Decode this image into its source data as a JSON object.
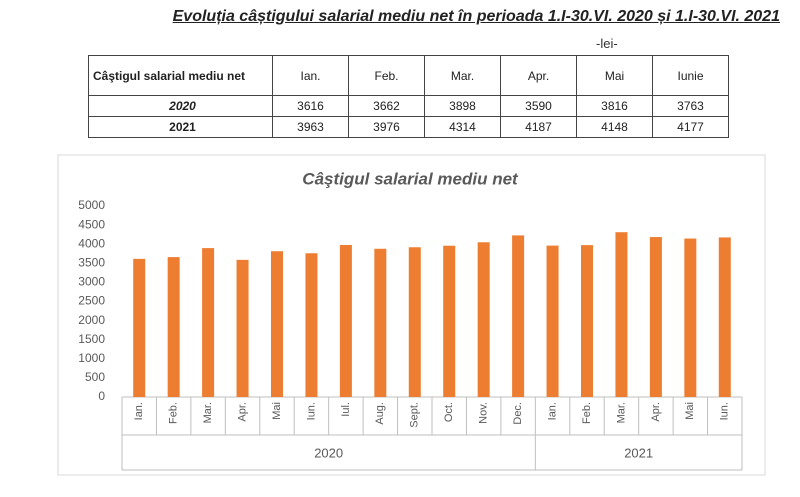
{
  "heading": {
    "title": "Evoluția câștigului salarial mediu net în perioada 1.I-30.VI. 2020 și 1.I-30.VI. 2021",
    "unit": "-lei-"
  },
  "table": {
    "header": [
      "Câştigul salarial mediu net",
      "Ian.",
      "Feb.",
      "Mar.",
      "Apr.",
      "Mai",
      "Iunie"
    ],
    "rows": [
      [
        "2020",
        3616,
        3662,
        3898,
        3590,
        3816,
        3763
      ],
      [
        "2021",
        3963,
        3976,
        4314,
        4187,
        4148,
        4177
      ]
    ]
  },
  "chart_data": {
    "type": "bar",
    "title": "Câştigul salarial mediu net",
    "color": "#ed7d31",
    "ylim": [
      0,
      5000
    ],
    "yticks": [
      0,
      500,
      1000,
      1500,
      2000,
      2500,
      3000,
      3500,
      4000,
      4500,
      5000
    ],
    "grid": false,
    "groups": [
      {
        "name": "2020",
        "categories": [
          "Ian.",
          "Feb.",
          "Mar.",
          "Apr.",
          "Mai",
          "Iun.",
          "Iul.",
          "Aug.",
          "Sept.",
          "Oct.",
          "Nov.",
          "Dec."
        ],
        "values": [
          3616,
          3662,
          3898,
          3590,
          3816,
          3763,
          3980,
          3880,
          3920,
          3960,
          4050,
          4230
        ]
      },
      {
        "name": "2021",
        "categories": [
          "Ian.",
          "Feb.",
          "Mar.",
          "Apr.",
          "Mai",
          "Iun."
        ],
        "values": [
          3963,
          3976,
          4314,
          4187,
          4148,
          4177
        ]
      }
    ]
  }
}
